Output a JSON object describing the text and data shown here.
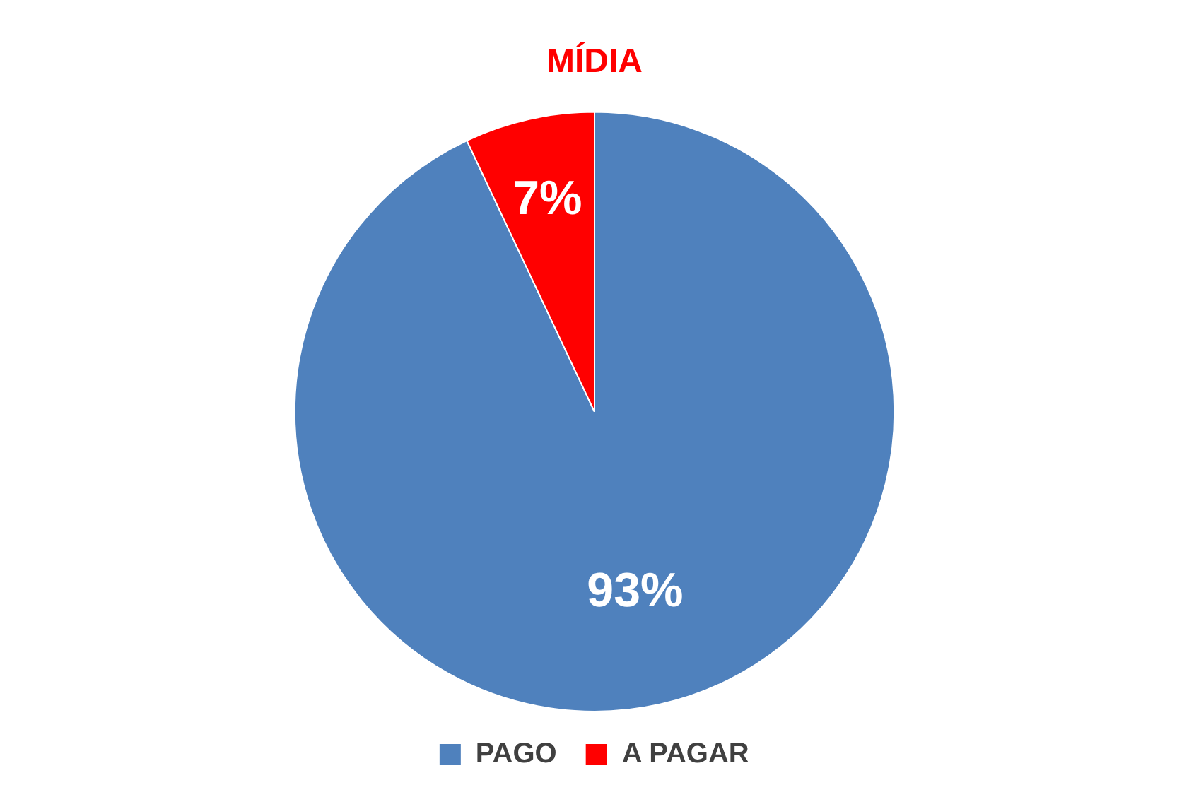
{
  "chart_data": {
    "type": "pie",
    "title": "MÍDIA",
    "categories": [
      "PAGO",
      "A PAGAR"
    ],
    "values": [
      93,
      7
    ],
    "colors": [
      "#4f81bd",
      "#ff0000"
    ],
    "value_labels": [
      "93%",
      "7%"
    ],
    "legend": "bottom"
  }
}
